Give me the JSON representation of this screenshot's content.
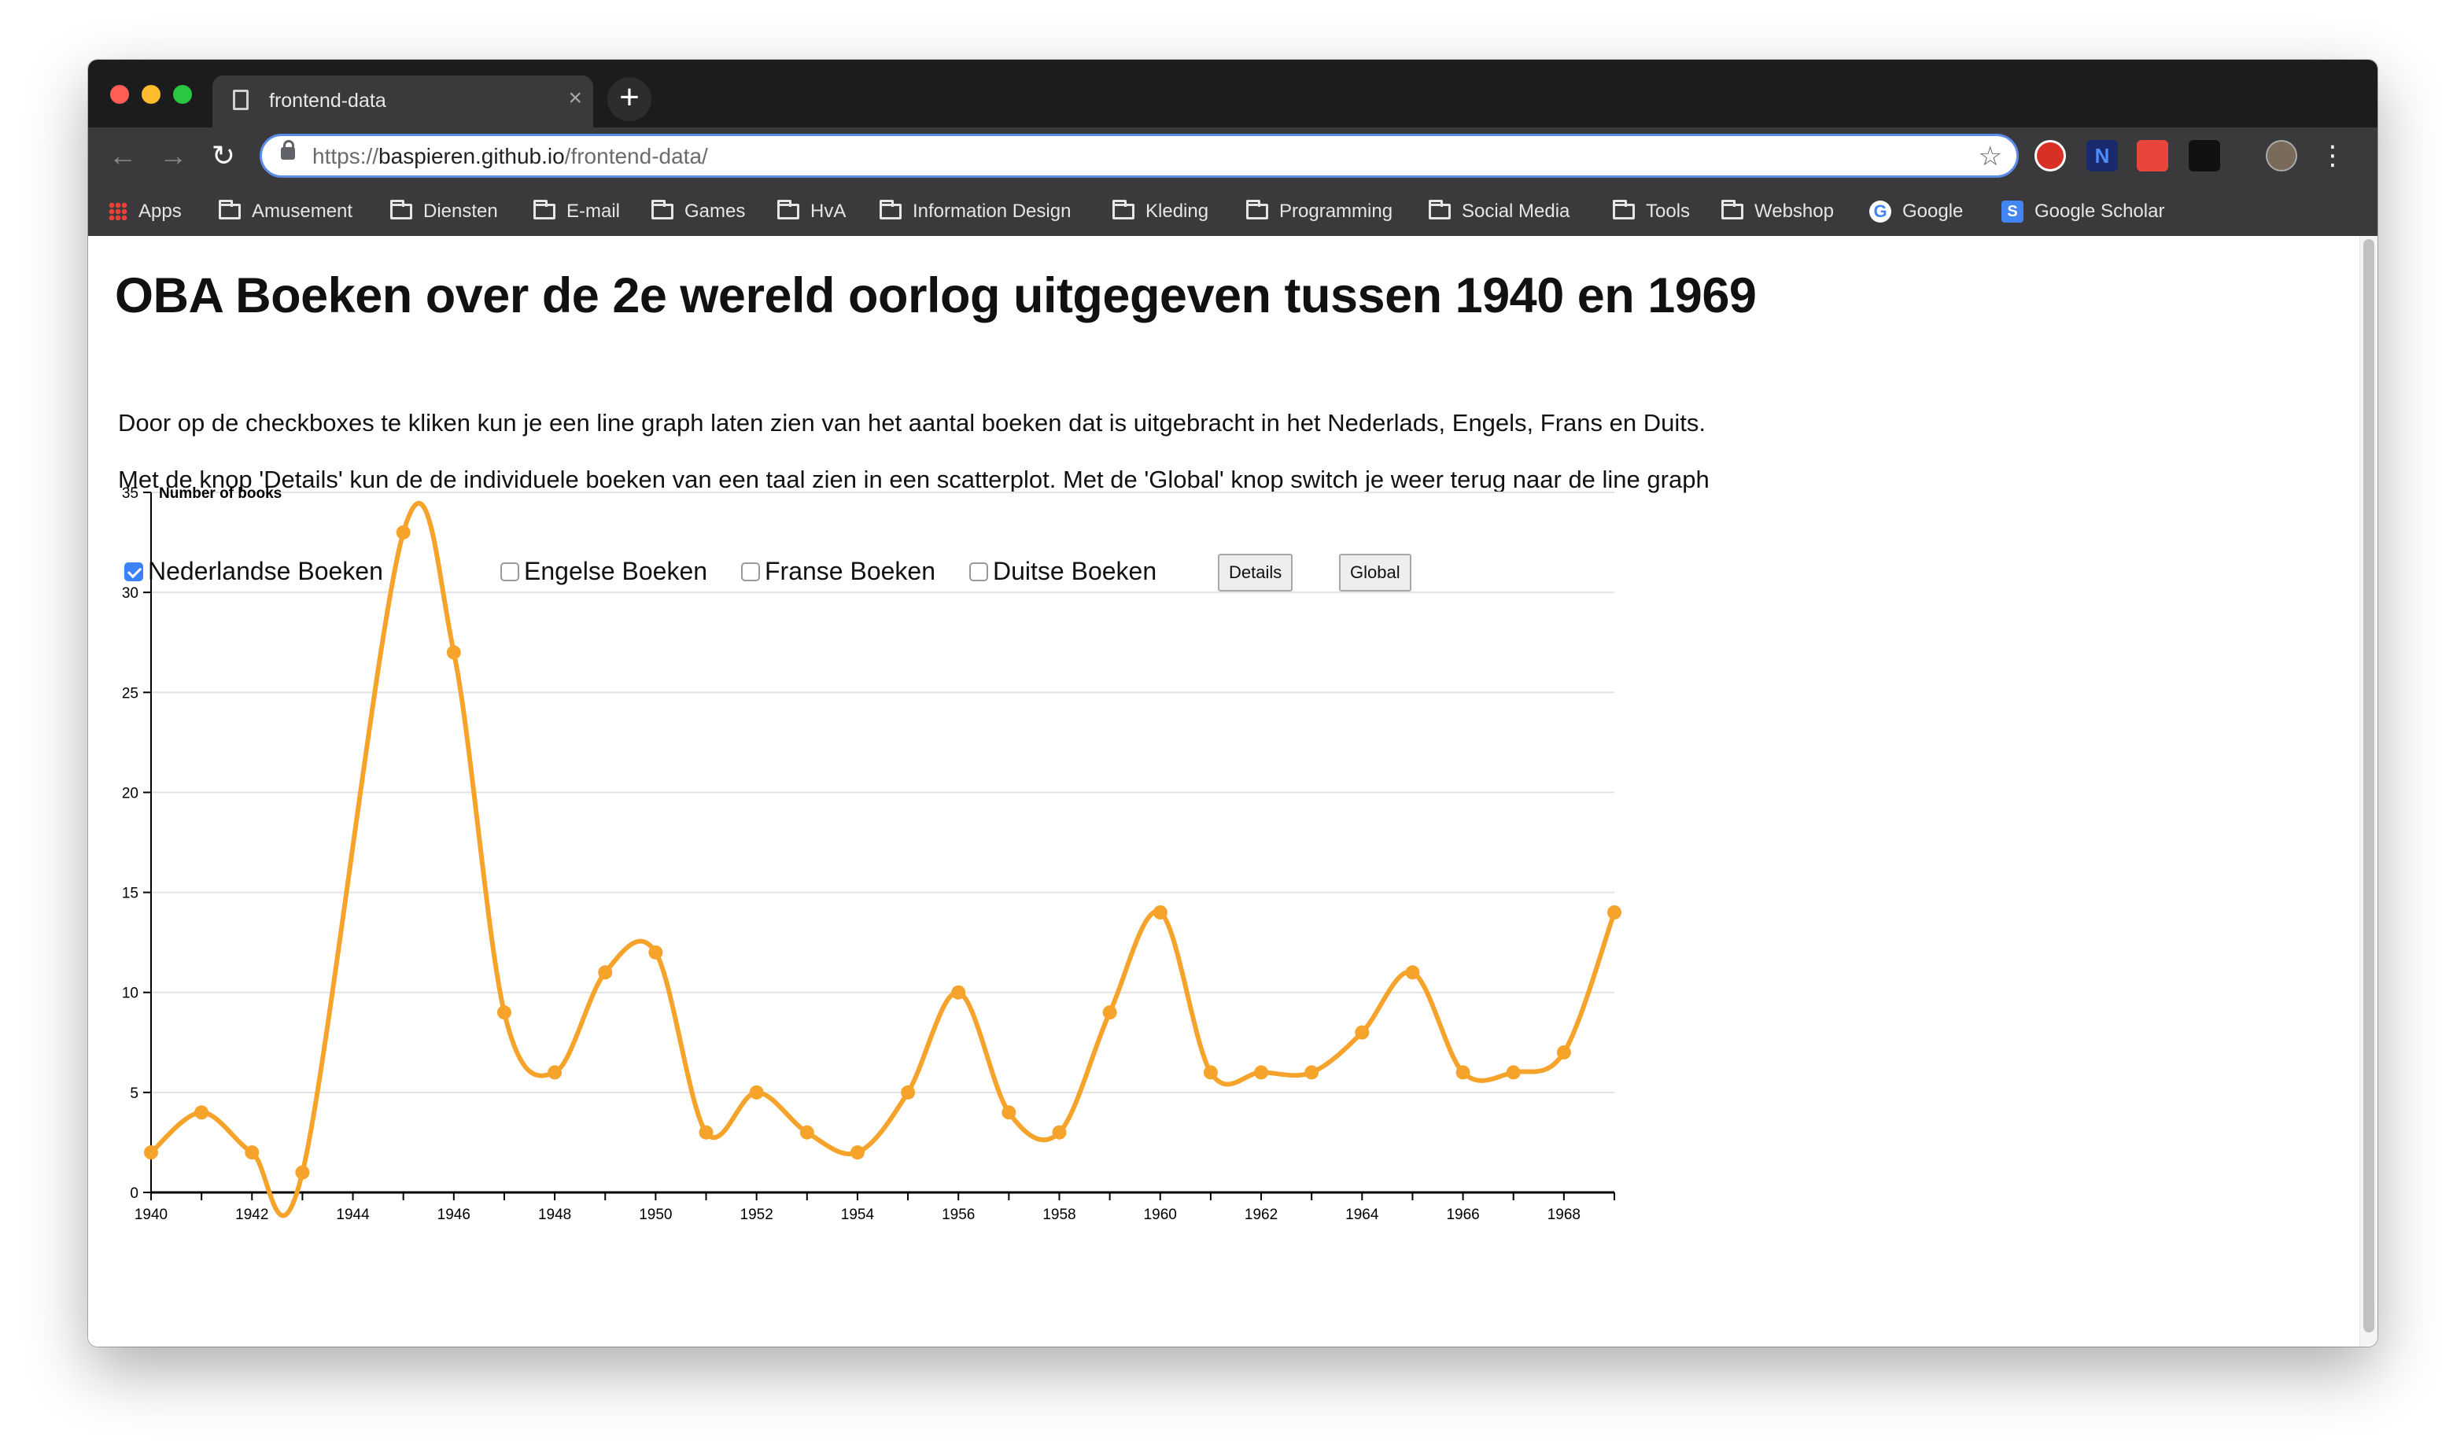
{
  "browser": {
    "tab_title": "frontend-data",
    "tab_close": "×",
    "new_tab": "+",
    "url_scheme": "https://",
    "url_host": "baspieren.github.io",
    "url_path": "/frontend-data/",
    "bookmarks": [
      {
        "label": "Apps",
        "icon": "apps-grid-icon"
      },
      {
        "label": "Amusement",
        "icon": "folder-icon"
      },
      {
        "label": "Diensten",
        "icon": "folder-icon"
      },
      {
        "label": "E-mail",
        "icon": "folder-icon"
      },
      {
        "label": "Games",
        "icon": "folder-icon"
      },
      {
        "label": "HvA",
        "icon": "folder-icon"
      },
      {
        "label": "Information Design",
        "icon": "folder-icon"
      },
      {
        "label": "Kleding",
        "icon": "folder-icon"
      },
      {
        "label": "Programming",
        "icon": "folder-icon"
      },
      {
        "label": "Social Media",
        "icon": "folder-icon"
      },
      {
        "label": "Tools",
        "icon": "folder-icon"
      },
      {
        "label": "Webshop",
        "icon": "folder-icon"
      },
      {
        "label": "Google",
        "icon": "google-icon"
      },
      {
        "label": "Google Scholar",
        "icon": "google-scholar-icon"
      }
    ]
  },
  "page": {
    "title": "OBA Boeken over de 2e wereld oorlog uitgegeven tussen 1940 en 1969",
    "paragraph1": "Door op de checkboxes te kliken kun je een line graph laten zien van het aantal boeken dat is uitgebracht in het Nederlads, Engels, Frans en Duits.",
    "paragraph2": "Met de knop 'Details' kun de de individuele boeken van een taal zien in een scatterplot. Met de 'Global' knop switch je weer terug naar de line graph",
    "checkboxes": [
      {
        "label": "Nederlandse Boeken",
        "checked": true
      },
      {
        "label": "Engelse Boeken",
        "checked": false
      },
      {
        "label": "Franse Boeken",
        "checked": false
      },
      {
        "label": "Duitse Boeken",
        "checked": false
      }
    ],
    "details_button": "Details",
    "global_button": "Global"
  },
  "chart_data": {
    "type": "line",
    "ylabel": "Number of books",
    "xlim": [
      1940,
      1969
    ],
    "ylim": [
      0,
      35
    ],
    "yticks": [
      0,
      5,
      10,
      15,
      20,
      25,
      30,
      35
    ],
    "xticks": [
      1940,
      1942,
      1944,
      1946,
      1948,
      1950,
      1952,
      1954,
      1956,
      1958,
      1960,
      1962,
      1964,
      1966,
      1968
    ],
    "grid": true,
    "color": "#f6a32b",
    "x": [
      1940,
      1941,
      1942,
      1943,
      1945,
      1946,
      1947,
      1948,
      1949,
      1950,
      1951,
      1952,
      1953,
      1954,
      1955,
      1956,
      1957,
      1958,
      1959,
      1960,
      1961,
      1962,
      1963,
      1964,
      1965,
      1966,
      1967,
      1968,
      1969
    ],
    "y": [
      2,
      4,
      2,
      1,
      33,
      27,
      9,
      6,
      11,
      12,
      3,
      5,
      3,
      2,
      5,
      10,
      4,
      3,
      9,
      14,
      6,
      6,
      6,
      8,
      11,
      6,
      6,
      7,
      14
    ]
  }
}
